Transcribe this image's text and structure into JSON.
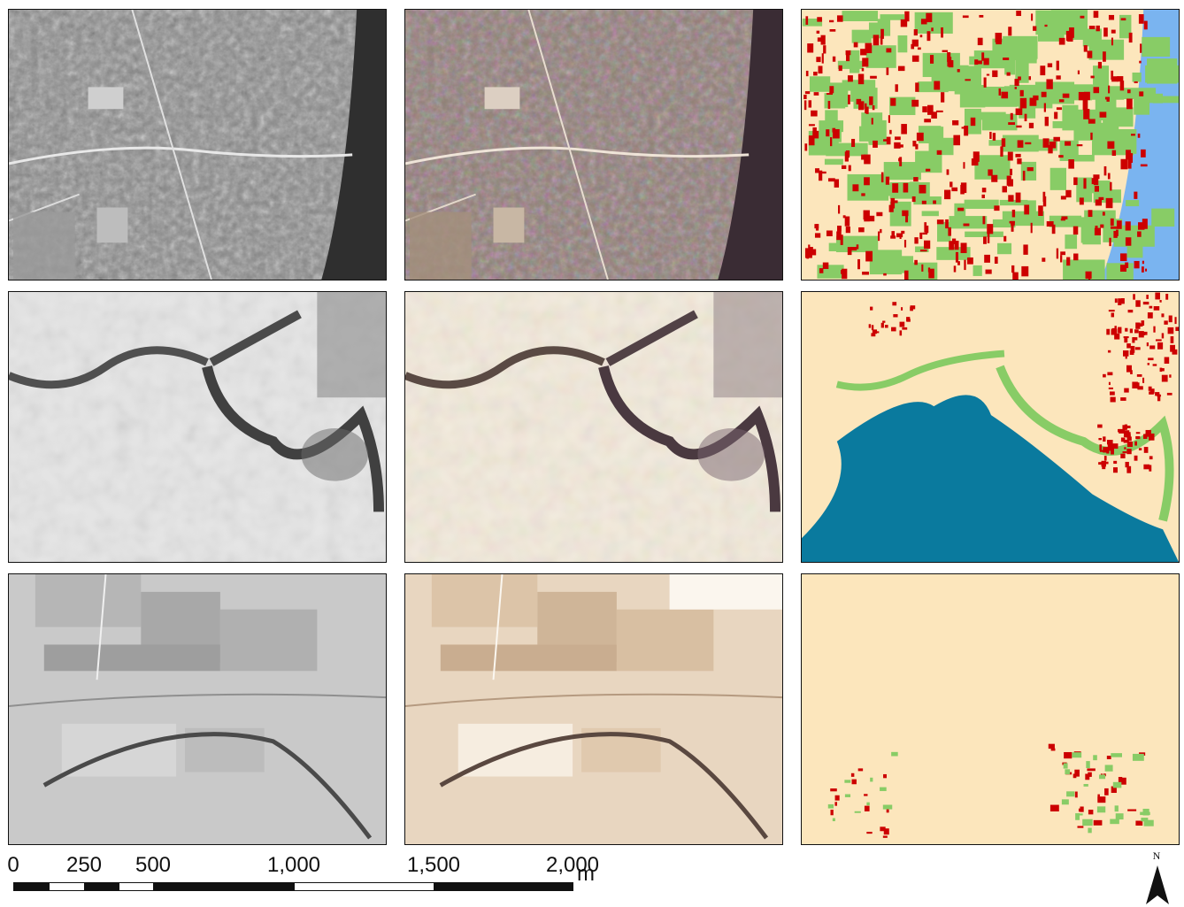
{
  "scale_bar": {
    "ticks": [
      "0",
      "250",
      "500",
      "1,000",
      "1,500",
      "2,000"
    ],
    "unit": "m"
  },
  "north_arrow": {
    "label": "N"
  },
  "legend_colors": {
    "built_up": "#cc0000",
    "vegetation": "#88cc66",
    "bare_soil": "#fce6bc",
    "water_sea": "#7ab4f0",
    "water_body": "#0a7a9e"
  },
  "panels": [
    {
      "row": 1,
      "column": 1,
      "type": "grayscale aerial photo"
    },
    {
      "row": 1,
      "column": 2,
      "type": "colorized aerial photo"
    },
    {
      "row": 1,
      "column": 3,
      "type": "classification map"
    },
    {
      "row": 2,
      "column": 1,
      "type": "grayscale aerial photo"
    },
    {
      "row": 2,
      "column": 2,
      "type": "colorized aerial photo"
    },
    {
      "row": 2,
      "column": 3,
      "type": "classification map"
    },
    {
      "row": 3,
      "column": 1,
      "type": "grayscale aerial photo"
    },
    {
      "row": 3,
      "column": 2,
      "type": "colorized aerial photo"
    },
    {
      "row": 3,
      "column": 3,
      "type": "classification map"
    }
  ]
}
